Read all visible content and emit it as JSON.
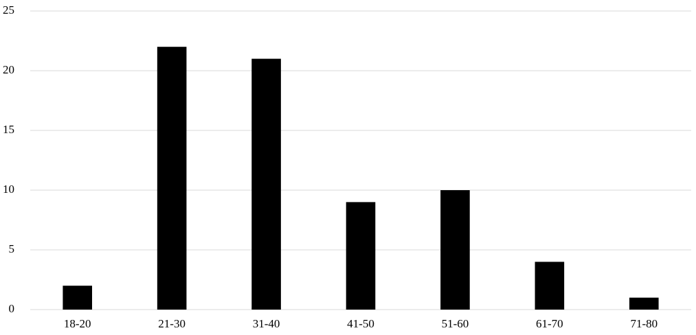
{
  "chart_data": {
    "type": "bar",
    "categories": [
      "18-20",
      "21-30",
      "31-40",
      "41-50",
      "51-60",
      "61-70",
      "71-80"
    ],
    "values": [
      2,
      22,
      21,
      9,
      10,
      4,
      1
    ],
    "color": "#000000",
    "ylim": [
      0,
      25
    ],
    "yticks": [
      0,
      5,
      10,
      15,
      20,
      25
    ],
    "grid": true
  }
}
